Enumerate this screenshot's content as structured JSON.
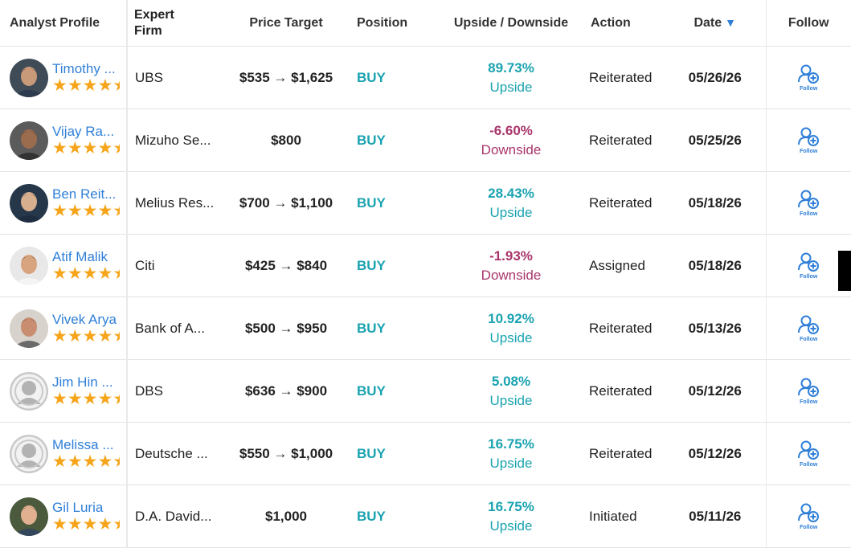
{
  "headers": {
    "analyst": "Analyst Profile",
    "firm_line1": "Expert",
    "firm_line2": "Firm",
    "price": "Price Target",
    "position": "Position",
    "updown": "Upside / Downside",
    "action": "Action",
    "date": "Date",
    "sort_icon": "triangle-down",
    "follow": "Follow"
  },
  "follow_label": "Follow",
  "colors": {
    "accent": "#2f7fd8",
    "teal": "#1aa3b0",
    "downside": "#a8356b",
    "star": "#f6a51b"
  },
  "rows": [
    {
      "name": "Timothy ...",
      "rating": 4.5,
      "firm": "UBS",
      "price": "$535 → $1,625",
      "position": "BUY",
      "pct": "89.73%",
      "dir": "Upside",
      "action": "Reiterated",
      "date": "05/26/26",
      "avatar": "photo"
    },
    {
      "name": "Vijay Ra...",
      "rating": 4.5,
      "firm": "Mizuho Se...",
      "price": "$800",
      "position": "BUY",
      "pct": "-6.60%",
      "dir": "Downside",
      "action": "Reiterated",
      "date": "05/25/26",
      "avatar": "photo"
    },
    {
      "name": "Ben Reit...",
      "rating": 4.5,
      "firm": "Melius Res...",
      "price": "$700 → $1,100",
      "position": "BUY",
      "pct": "28.43%",
      "dir": "Upside",
      "action": "Reiterated",
      "date": "05/18/26",
      "avatar": "photo"
    },
    {
      "name": "Atif Malik",
      "rating": 4.5,
      "firm": "Citi",
      "price": "$425 → $840",
      "position": "BUY",
      "pct": "-1.93%",
      "dir": "Downside",
      "action": "Assigned",
      "date": "05/18/26",
      "avatar": "photo"
    },
    {
      "name": "Vivek Arya",
      "rating": 4.5,
      "firm": "Bank of A...",
      "price": "$500 → $950",
      "position": "BUY",
      "pct": "10.92%",
      "dir": "Upside",
      "action": "Reiterated",
      "date": "05/13/26",
      "avatar": "photo"
    },
    {
      "name": "Jim Hin ...",
      "rating": 4.5,
      "firm": "DBS",
      "price": "$636 → $900",
      "position": "BUY",
      "pct": "5.08%",
      "dir": "Upside",
      "action": "Reiterated",
      "date": "05/12/26",
      "avatar": "placeholder"
    },
    {
      "name": "Melissa ...",
      "rating": 4.5,
      "firm": "Deutsche ...",
      "price": "$550 → $1,000",
      "position": "BUY",
      "pct": "16.75%",
      "dir": "Upside",
      "action": "Reiterated",
      "date": "05/12/26",
      "avatar": "placeholder"
    },
    {
      "name": "Gil Luria",
      "rating": 4.5,
      "firm": "D.A. David...",
      "price": "$1,000",
      "position": "BUY",
      "pct": "16.75%",
      "dir": "Upside",
      "action": "Initiated",
      "date": "05/11/26",
      "avatar": "photo"
    }
  ]
}
